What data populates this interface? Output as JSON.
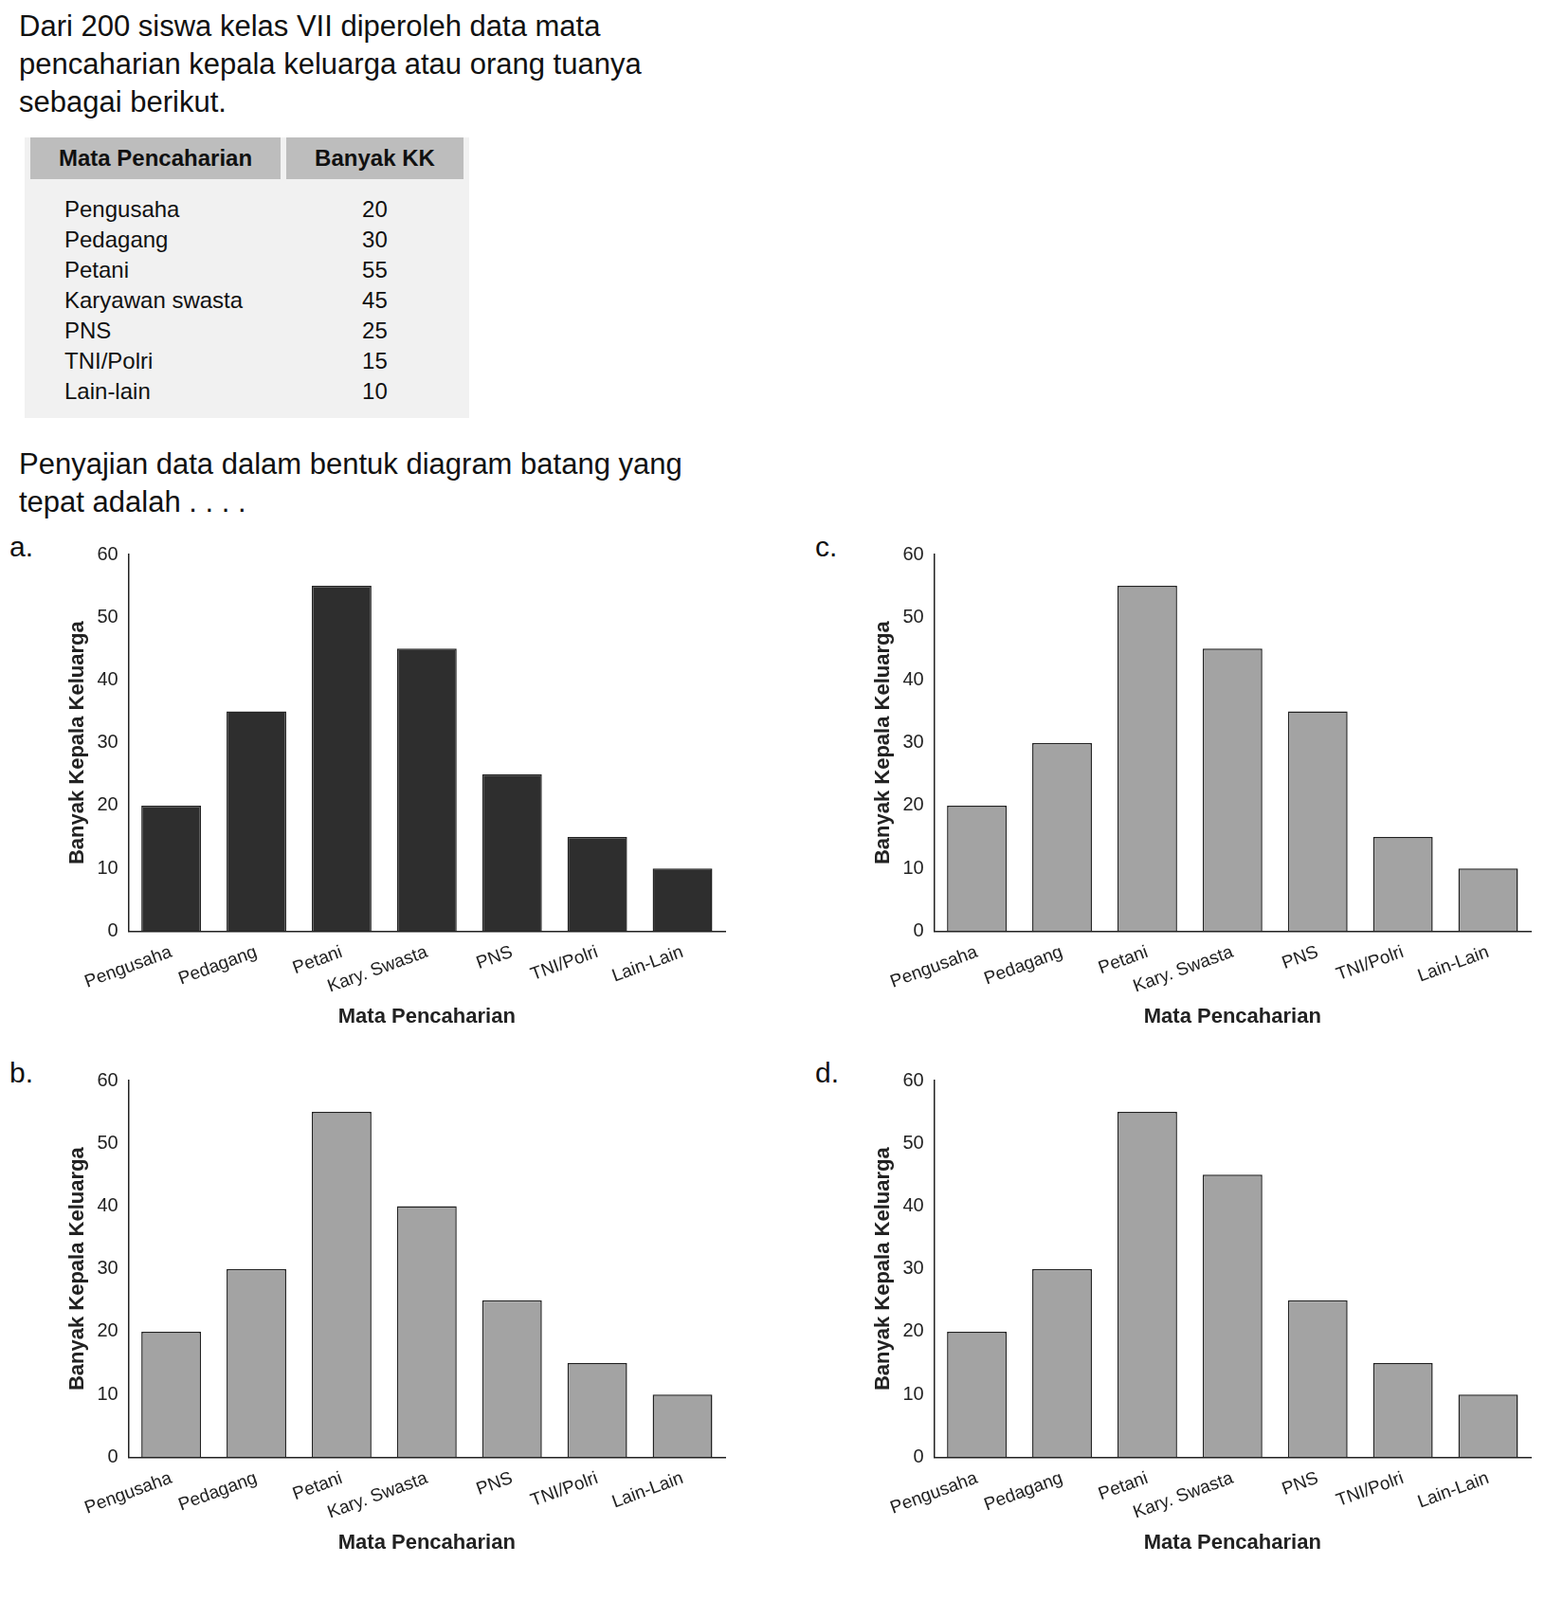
{
  "question": {
    "text": "Dari 200 siswa kelas VII diperoleh data mata pencaharian kepala keluarga atau orang tuanya sebagai berikut.",
    "prompt": "Penyajian data dalam bentuk diagram batang yang tepat adalah . . . ."
  },
  "table": {
    "header": [
      "Mata Pencaharian",
      "Banyak KK"
    ],
    "rows": [
      [
        "Pengusaha",
        20
      ],
      [
        "Pedagang",
        30
      ],
      [
        "Petani",
        55
      ],
      [
        "Karyawan swasta",
        45
      ],
      [
        "PNS",
        25
      ],
      [
        "TNI/Polri",
        15
      ],
      [
        "Lain-lain",
        10
      ]
    ]
  },
  "chart_data": [
    {
      "type": "bar",
      "title": "a.",
      "x_label": "Mata Pencaharian",
      "y_label": "Banyak Kepala Keluarga",
      "categories": [
        "Pengusaha",
        "Pedagang",
        "Petani",
        "Kary. Swasta",
        "PNS",
        "TNI/Polri",
        "Lain-Lain"
      ],
      "values": [
        20,
        35,
        55,
        45,
        25,
        15,
        10
      ],
      "color": "#2e2e2e",
      "ylim": [
        0,
        60
      ],
      "yticks": [
        0,
        10,
        20,
        30,
        40,
        50,
        60
      ],
      "grid": false
    },
    {
      "type": "bar",
      "title": "b.",
      "x_label": "Mata Pencaharian",
      "y_label": "Banyak Kepala Keluarga",
      "categories": [
        "Pengusaha",
        "Pedagang",
        "Petani",
        "Kary. Swasta",
        "PNS",
        "TNI/Polri",
        "Lain-Lain"
      ],
      "values": [
        20,
        30,
        55,
        40,
        25,
        15,
        10
      ],
      "color": "#a3a3a3",
      "ylim": [
        0,
        60
      ],
      "yticks": [
        0,
        10,
        20,
        30,
        40,
        50,
        60
      ],
      "grid": false
    },
    {
      "type": "bar",
      "title": "c.",
      "x_label": "Mata Pencaharian",
      "y_label": "Banyak Kepala Keluarga",
      "categories": [
        "Pengusaha",
        "Pedagang",
        "Petani",
        "Kary. Swasta",
        "PNS",
        "TNI/Polri",
        "Lain-Lain"
      ],
      "values": [
        20,
        30,
        55,
        45,
        35,
        15,
        10
      ],
      "color": "#a3a3a3",
      "ylim": [
        0,
        60
      ],
      "yticks": [
        0,
        10,
        20,
        30,
        40,
        50,
        60
      ],
      "grid": false
    },
    {
      "type": "bar",
      "title": "d.",
      "x_label": "Mata Pencaharian",
      "y_label": "Banyak Kepala Keluarga",
      "categories": [
        "Pengusaha",
        "Pedagang",
        "Petani",
        "Kary. Swasta",
        "PNS",
        "TNI/Polri",
        "Lain-Lain"
      ],
      "values": [
        20,
        30,
        55,
        45,
        25,
        15,
        10
      ],
      "color": "#a3a3a3",
      "ylim": [
        0,
        60
      ],
      "yticks": [
        0,
        10,
        20,
        30,
        40,
        50,
        60
      ],
      "grid": false
    }
  ]
}
